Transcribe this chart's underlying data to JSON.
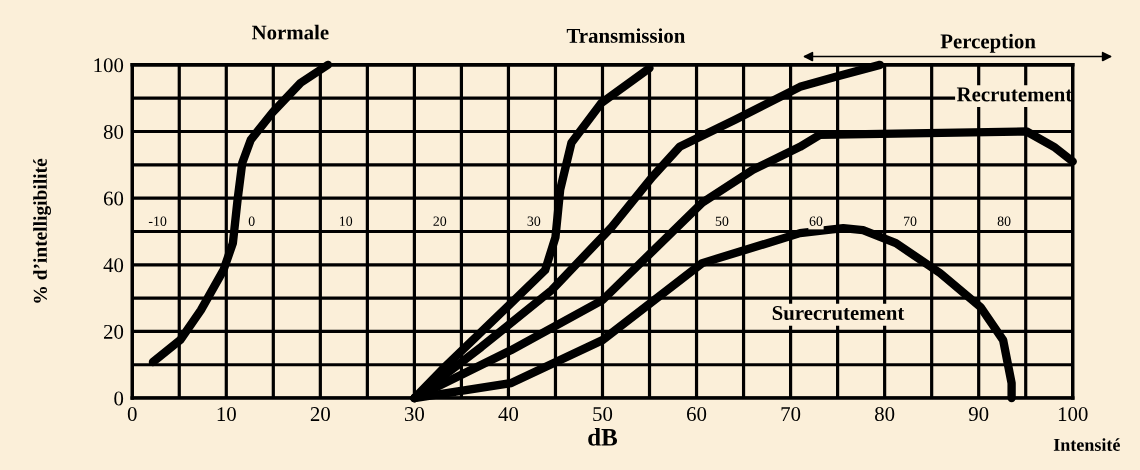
{
  "chart_data": {
    "type": "line",
    "xlabel": "dB",
    "ylabel": "% d’intelligibilité",
    "xlim": [
      0,
      100
    ],
    "ylim": [
      0,
      100
    ],
    "xticks": [
      0,
      {
        "value": 5,
        "label": null
      },
      10,
      {
        "value": 15,
        "label": null
      },
      20,
      {
        "value": 25,
        "label": null
      },
      30,
      {
        "value": 35,
        "label": null
      },
      40,
      {
        "value": 45,
        "label": null
      },
      50,
      {
        "value": 55,
        "label": null
      },
      60,
      {
        "value": 65,
        "label": null
      },
      70,
      {
        "value": 75,
        "label": null
      },
      80,
      {
        "value": 85,
        "label": null
      },
      90,
      {
        "value": 95,
        "label": null
      },
      100
    ],
    "yticks": [
      0,
      {
        "value": 10,
        "label": null
      },
      20,
      {
        "value": 30,
        "label": null
      },
      40,
      {
        "value": 50,
        "label": null
      },
      60,
      {
        "value": 70,
        "label": null
      },
      80,
      {
        "value": 90,
        "label": null
      },
      100
    ],
    "x2lim": [
      -12.7,
      87.3
    ],
    "x2ticks": [
      -10,
      0,
      10,
      20,
      30,
      50,
      60,
      70,
      80
    ],
    "grid": true,
    "legend": false,
    "marker": "none",
    "line_style": "solid",
    "series": [
      {
        "name": "Normale",
        "color": "#000000",
        "x": [
          2.2,
          5.1,
          7.3,
          9.7,
          10.7,
          11.2,
          11.7,
          12.6,
          15,
          17.9,
          20.8
        ],
        "values": [
          10.8,
          17.4,
          26.4,
          38.4,
          46.5,
          59.5,
          70.6,
          77.5,
          86,
          94.6,
          100
        ]
      },
      {
        "name": "Transmission",
        "color": "#000000",
        "x": [
          30,
          32.9,
          40.3,
          43.9,
          45,
          45.5,
          46.7,
          49.9,
          55
        ],
        "values": [
          0,
          8.4,
          28.5,
          38.4,
          48.3,
          62.5,
          76.6,
          88.6,
          99
        ]
      },
      {
        "color": "#000000",
        "x": [
          30,
          37.1,
          44.6,
          51,
          55.3,
          58.2,
          64.1,
          71,
          74.8,
          79.5
        ],
        "values": [
          0,
          15.3,
          32.4,
          51.4,
          66.4,
          75.4,
          83.5,
          93.4,
          96.4,
          100
        ]
      },
      {
        "name": "Recrutement",
        "color": "#000000",
        "x": [
          30,
          40.3,
          50,
          60.6,
          66,
          71,
          73.1,
          95.1,
          98,
          100
        ],
        "values": [
          0,
          14.4,
          29.4,
          58.6,
          68.5,
          75.4,
          79,
          80,
          75.4,
          71
        ]
      },
      {
        "name": "Surecrutement",
        "color": "#000000",
        "x": [
          30,
          40.3,
          50,
          60.6,
          71,
          75.6,
          77.7,
          81.2,
          85.9,
          90.2,
          92.6,
          93.5,
          93.5
        ],
        "values": [
          0,
          4.5,
          17.4,
          40.5,
          49.5,
          51,
          50.4,
          46.5,
          37.5,
          27.3,
          17.4,
          4.5,
          0
        ]
      }
    ],
    "annotations": [
      "Perception",
      "Intensité"
    ]
  }
}
